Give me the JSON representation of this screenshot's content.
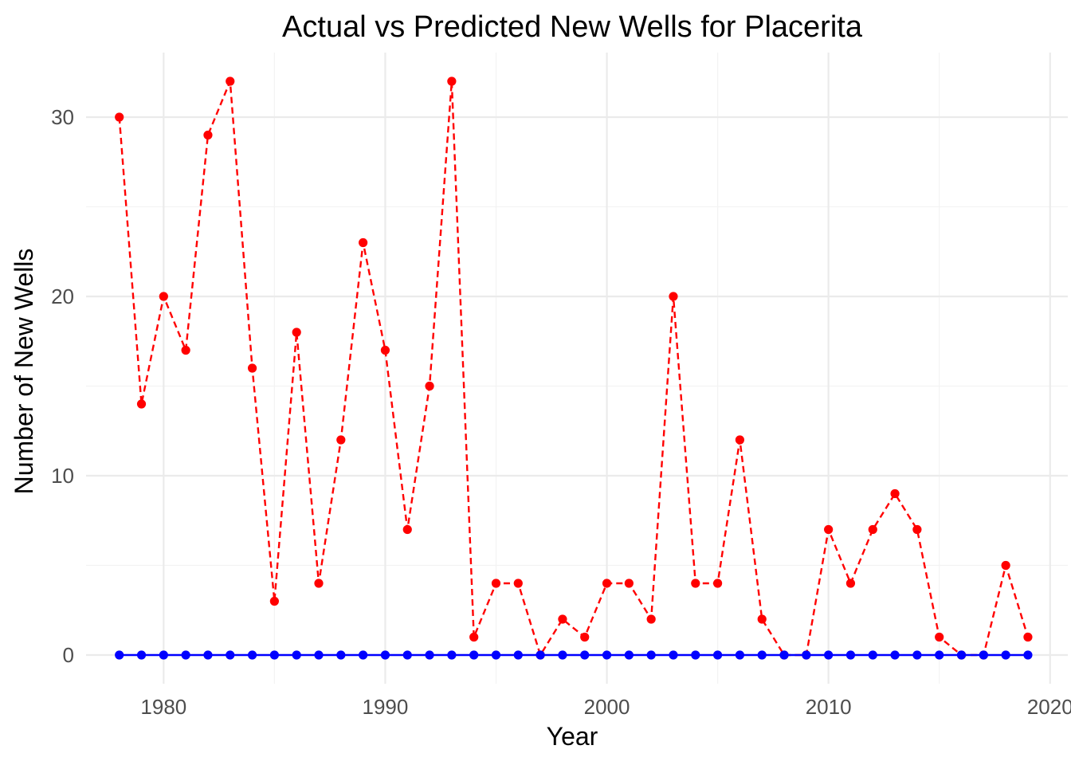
{
  "chart_data": {
    "type": "line",
    "title": "Actual vs Predicted New Wells for Placerita",
    "xlabel": "Year",
    "ylabel": "Number of New Wells",
    "xlim": [
      1976.5,
      2020.8
    ],
    "ylim": [
      -1.6,
      33.6
    ],
    "x_major_ticks": [
      1980,
      1990,
      2000,
      2010,
      2020
    ],
    "x_minor_ticks": [
      1985,
      1995,
      2005,
      2015
    ],
    "y_major_ticks": [
      0,
      10,
      20,
      30
    ],
    "y_minor_ticks": [
      5,
      15,
      25
    ],
    "x_tick_labels": [
      "1980",
      "1990",
      "2000",
      "2010",
      "2020"
    ],
    "y_tick_labels": [
      "0",
      "10",
      "20",
      "30"
    ],
    "grid": true,
    "legend": "none",
    "x": [
      1978,
      1979,
      1980,
      1981,
      1982,
      1983,
      1984,
      1985,
      1986,
      1987,
      1988,
      1989,
      1990,
      1991,
      1992,
      1993,
      1994,
      1995,
      1996,
      1997,
      1998,
      1999,
      2000,
      2001,
      2002,
      2003,
      2004,
      2005,
      2006,
      2007,
      2008,
      2009,
      2010,
      2011,
      2012,
      2013,
      2014,
      2015,
      2016,
      2017,
      2018,
      2019
    ],
    "series": [
      {
        "color": "#ff0000",
        "line_style": "dashed",
        "values": [
          30,
          14,
          20,
          17,
          29,
          32,
          16,
          3,
          18,
          4,
          12,
          23,
          17,
          7,
          15,
          32,
          1,
          4,
          4,
          0,
          2,
          1,
          4,
          4,
          2,
          20,
          4,
          4,
          12,
          2,
          0,
          0,
          7,
          4,
          7,
          9,
          7,
          1,
          0,
          0,
          5,
          1
        ]
      },
      {
        "color": "#0000ff",
        "line_style": "solid",
        "values": [
          0,
          0,
          0,
          0,
          0,
          0,
          0,
          0,
          0,
          0,
          0,
          0,
          0,
          0,
          0,
          0,
          0,
          0,
          0,
          0,
          0,
          0,
          0,
          0,
          0,
          0,
          0,
          0,
          0,
          0,
          0,
          0,
          0,
          0,
          0,
          0,
          0,
          0,
          0,
          0,
          0,
          0
        ]
      }
    ]
  }
}
